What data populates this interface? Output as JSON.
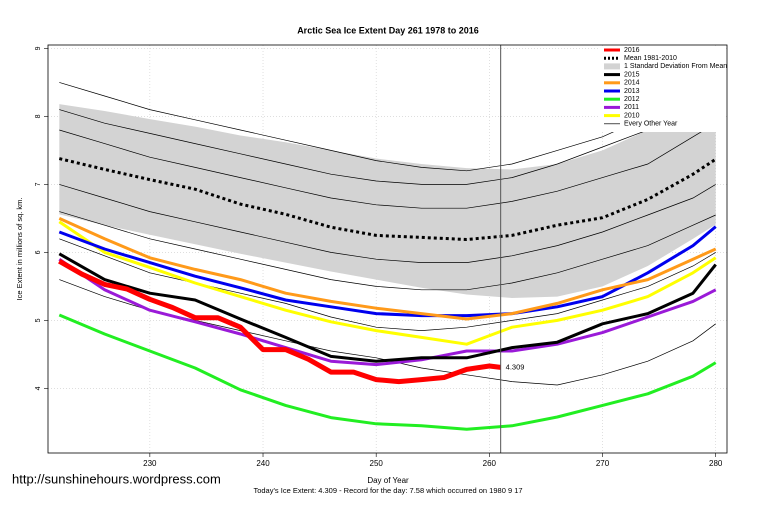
{
  "chart_data": {
    "type": "line",
    "title": "Arctic Sea Ice Extent Day 261 1978 to 2016",
    "x_label": "Day of Year",
    "y_label": "Ice Extent in millions of sq. km.",
    "footnote": "Today's Ice Extent: 4.309  - Record for the day: 7.58 which occurred on 1980 9 17",
    "watermark": "http://sunshinehours.wordpress.com",
    "xlim": [
      221,
      281
    ],
    "ylim": [
      3.05,
      9.05
    ],
    "xticks": [
      230,
      240,
      250,
      260,
      270,
      280
    ],
    "yticks": [
      4,
      5,
      6,
      7,
      8,
      9
    ],
    "grid": true,
    "marker_day": 261,
    "annotation": {
      "x": 261,
      "y": 4.309,
      "label": "4.309",
      "color": "#ff2020"
    },
    "series": [
      {
        "name": "2016",
        "style": "line",
        "color": "#ff0000",
        "width": 5,
        "x": [
          222,
          224,
          226,
          228,
          230,
          232,
          234,
          236,
          238,
          240,
          242,
          244,
          246,
          248,
          250,
          252,
          254,
          256,
          258,
          260,
          261
        ],
        "values": [
          5.87,
          5.68,
          5.53,
          5.46,
          5.31,
          5.19,
          5.04,
          5.04,
          4.9,
          4.57,
          4.57,
          4.43,
          4.24,
          4.24,
          4.13,
          4.1,
          4.13,
          4.16,
          4.28,
          4.33,
          4.309
        ]
      },
      {
        "name": "Mean 1981-2010",
        "style": "dashed",
        "color": "#000000",
        "width": 3,
        "x": [
          222,
          226,
          230,
          234,
          238,
          242,
          246,
          250,
          254,
          258,
          262,
          266,
          270,
          274,
          278,
          280
        ],
        "values": [
          7.38,
          7.22,
          7.07,
          6.93,
          6.71,
          6.56,
          6.37,
          6.25,
          6.22,
          6.19,
          6.25,
          6.4,
          6.51,
          6.78,
          7.15,
          7.37
        ]
      },
      {
        "name": "1 Standard Deviation From Mean",
        "style": "band",
        "color": "#d3d3d3",
        "x": [
          222,
          226,
          230,
          234,
          238,
          242,
          246,
          250,
          254,
          258,
          262,
          266,
          270,
          274,
          278,
          280
        ],
        "upper": [
          8.18,
          8.08,
          7.96,
          7.85,
          7.72,
          7.62,
          7.5,
          7.38,
          7.3,
          7.24,
          7.22,
          7.3,
          7.5,
          7.8,
          8.2,
          8.4
        ],
        "lower": [
          6.56,
          6.4,
          6.26,
          6.12,
          5.98,
          5.85,
          5.72,
          5.6,
          5.48,
          5.38,
          5.33,
          5.35,
          5.5,
          5.8,
          6.2,
          6.41
        ]
      },
      {
        "name": "2015",
        "style": "line",
        "color": "#000000",
        "width": 3,
        "x": [
          222,
          226,
          230,
          234,
          238,
          242,
          246,
          250,
          254,
          258,
          262,
          266,
          270,
          274,
          278,
          280
        ],
        "values": [
          5.98,
          5.6,
          5.4,
          5.3,
          5.02,
          4.75,
          4.47,
          4.4,
          4.45,
          4.45,
          4.6,
          4.68,
          4.95,
          5.1,
          5.4,
          5.82
        ]
      },
      {
        "name": "2014",
        "style": "line",
        "color": "#ff9a1a",
        "width": 3,
        "x": [
          222,
          226,
          230,
          234,
          238,
          242,
          246,
          250,
          254,
          258,
          262,
          266,
          270,
          274,
          278,
          280
        ],
        "values": [
          6.5,
          6.2,
          5.92,
          5.75,
          5.6,
          5.4,
          5.28,
          5.18,
          5.1,
          5.02,
          5.1,
          5.25,
          5.45,
          5.6,
          5.9,
          6.05
        ]
      },
      {
        "name": "2013",
        "style": "line",
        "color": "#0000ee",
        "width": 3,
        "x": [
          222,
          226,
          230,
          234,
          238,
          242,
          246,
          250,
          254,
          258,
          262,
          266,
          270,
          274,
          278,
          280
        ],
        "values": [
          6.3,
          6.05,
          5.85,
          5.65,
          5.48,
          5.3,
          5.2,
          5.1,
          5.07,
          5.07,
          5.1,
          5.2,
          5.35,
          5.7,
          6.1,
          6.38
        ]
      },
      {
        "name": "2012",
        "style": "line",
        "color": "#22ee22",
        "width": 3,
        "x": [
          222,
          226,
          230,
          234,
          238,
          242,
          246,
          250,
          254,
          258,
          262,
          266,
          270,
          274,
          278,
          280
        ],
        "values": [
          5.08,
          4.8,
          4.55,
          4.3,
          3.98,
          3.75,
          3.57,
          3.48,
          3.45,
          3.4,
          3.45,
          3.58,
          3.75,
          3.92,
          4.18,
          4.38
        ]
      },
      {
        "name": "2011",
        "style": "line",
        "color": "#9a1ad8",
        "width": 3,
        "x": [
          222,
          226,
          230,
          234,
          238,
          242,
          246,
          250,
          254,
          258,
          262,
          266,
          270,
          274,
          278,
          280
        ],
        "values": [
          5.9,
          5.45,
          5.15,
          4.98,
          4.8,
          4.6,
          4.4,
          4.35,
          4.42,
          4.55,
          4.55,
          4.65,
          4.82,
          5.05,
          5.28,
          5.45
        ]
      },
      {
        "name": "2010",
        "style": "line",
        "color": "#ffff00",
        "width": 3,
        "x": [
          222,
          226,
          230,
          234,
          238,
          242,
          246,
          250,
          254,
          258,
          262,
          266,
          270,
          274,
          278,
          280
        ],
        "values": [
          6.45,
          6.0,
          5.78,
          5.55,
          5.35,
          5.15,
          4.98,
          4.85,
          4.75,
          4.65,
          4.9,
          5.0,
          5.15,
          5.35,
          5.7,
          5.92
        ]
      },
      {
        "name": "Every Other Year",
        "style": "thin",
        "color": "#000000",
        "width": 0.7,
        "x": [
          222,
          226,
          230,
          234,
          238,
          242,
          246,
          250,
          254,
          258,
          262,
          266,
          270,
          274,
          278,
          280
        ],
        "lines": [
          [
            8.5,
            8.3,
            8.1,
            7.95,
            7.8,
            7.65,
            7.5,
            7.35,
            7.25,
            7.2,
            7.3,
            7.5,
            7.7,
            8.0,
            8.3,
            8.5
          ],
          [
            8.1,
            7.9,
            7.75,
            7.6,
            7.45,
            7.3,
            7.15,
            7.05,
            7.0,
            7.0,
            7.1,
            7.3,
            7.55,
            7.8,
            8.1,
            8.3
          ],
          [
            7.8,
            7.6,
            7.4,
            7.25,
            7.1,
            6.95,
            6.8,
            6.7,
            6.65,
            6.65,
            6.75,
            6.9,
            7.1,
            7.3,
            7.7,
            7.9
          ],
          [
            7.0,
            6.8,
            6.6,
            6.45,
            6.3,
            6.15,
            6.0,
            5.9,
            5.85,
            5.85,
            5.95,
            6.1,
            6.3,
            6.55,
            6.8,
            7.0
          ],
          [
            6.6,
            6.4,
            6.2,
            6.05,
            5.9,
            5.75,
            5.6,
            5.5,
            5.45,
            5.45,
            5.55,
            5.7,
            5.9,
            6.1,
            6.4,
            6.55
          ],
          [
            6.2,
            5.95,
            5.7,
            5.55,
            5.4,
            5.25,
            5.05,
            4.9,
            4.85,
            4.9,
            5.0,
            5.1,
            5.3,
            5.5,
            5.8,
            6.0
          ],
          [
            5.6,
            5.35,
            5.15,
            5.0,
            4.85,
            4.7,
            4.55,
            4.45,
            4.3,
            4.2,
            4.1,
            4.05,
            4.2,
            4.4,
            4.7,
            4.95
          ]
        ]
      }
    ]
  }
}
